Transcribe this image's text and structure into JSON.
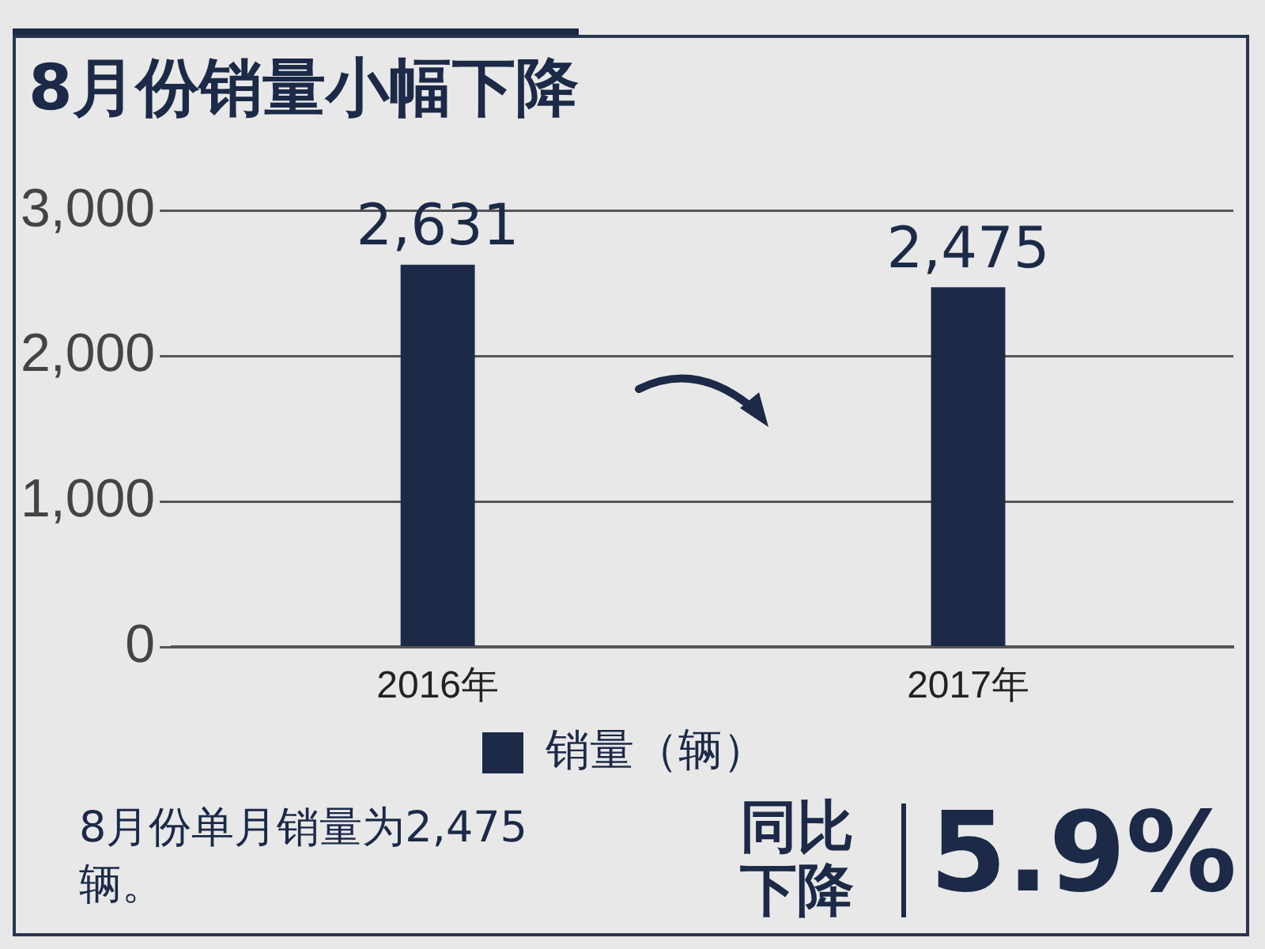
{
  "chart_data": {
    "type": "bar",
    "title": "8月份销量小幅下降",
    "categories": [
      "2016年",
      "2017年"
    ],
    "series": [
      {
        "name": "销量（辆）",
        "color": "#1c2a48",
        "values": [
          2631,
          2475
        ],
        "value_labels": [
          "2,631",
          "2,475"
        ]
      }
    ],
    "ylim": [
      0,
      3000
    ],
    "yticks": [
      {
        "value": 0,
        "label": "0"
      },
      {
        "value": 1000,
        "label": "1,000"
      },
      {
        "value": 2000,
        "label": "2,000"
      },
      {
        "value": 3000,
        "label": "3,000"
      }
    ],
    "grid": "y",
    "legend": "bottom",
    "annotations": [
      "8月份单月销量为2,475辆。",
      "同比下降",
      "5.9%"
    ]
  }
}
